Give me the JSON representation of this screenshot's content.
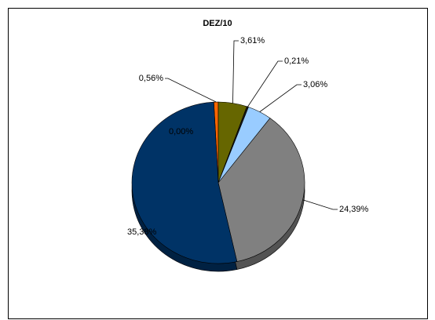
{
  "chart_data": {
    "type": "pie",
    "title": "DEZ/10",
    "values": [
      0.56,
      3.61,
      0.21,
      3.06,
      24.39,
      35.38,
      0.0
    ],
    "value_labels": [
      "0,56%",
      "3,61%",
      "0,21%",
      "3,06%",
      "24,39%",
      "35,38%",
      "0,00%"
    ],
    "colors": [
      "#ff6600",
      "#666600",
      "#1a1a1a",
      "#99ccff",
      "#808080",
      "#003366",
      "#339966"
    ]
  }
}
